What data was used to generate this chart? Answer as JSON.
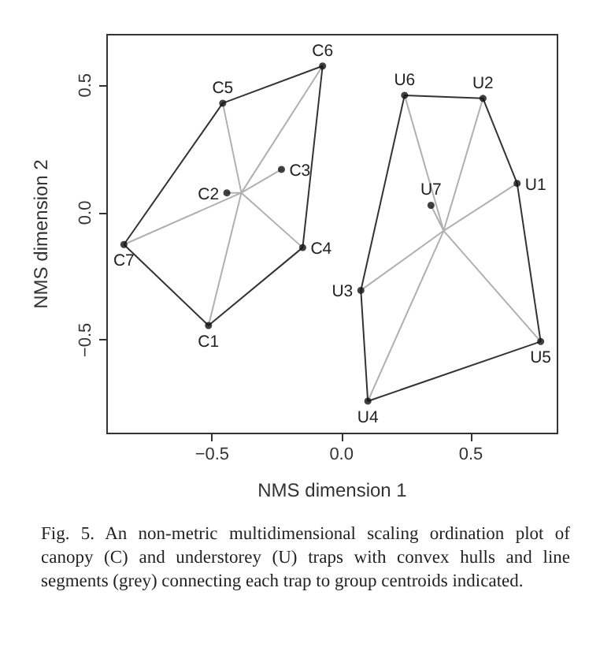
{
  "chart_data": {
    "type": "scatter",
    "xlabel": "NMS dimension 1",
    "ylabel": "NMS dimension 2",
    "xlim": [
      -0.906,
      0.835
    ],
    "ylim": [
      -0.867,
      0.699
    ],
    "xticks": [
      {
        "value": -0.5,
        "label": "−0.5"
      },
      {
        "value": 0,
        "label": "0.0"
      },
      {
        "value": 0.5,
        "label": "0.5"
      }
    ],
    "yticks": [
      {
        "value": -0.5,
        "label": "−0.5"
      },
      {
        "value": 0,
        "label": "0.0"
      },
      {
        "value": 0.5,
        "label": "0.5"
      }
    ],
    "grid": false,
    "marker": "circle",
    "series": [
      {
        "type": "line",
        "marker": "none",
        "color": "#b0b0b0",
        "x": [
          -0.387,
          -0.514,
          -0.387,
          -0.443,
          -0.387,
          -0.232,
          -0.387,
          -0.15,
          -0.387,
          -0.459,
          -0.387,
          -0.073,
          -0.387,
          -0.841
        ],
        "values": [
          0.078,
          -0.443,
          0.078,
          0.078,
          0.078,
          0.17,
          0.078,
          -0.137,
          0.078,
          0.43,
          0.078,
          0.576,
          0.078,
          -0.125
        ]
      },
      {
        "type": "line",
        "marker": "none",
        "color": "#b0b0b0",
        "x": [
          0.395,
          0.679,
          0.395,
          0.547,
          0.395,
          0.075,
          0.395,
          0.102,
          0.395,
          0.77,
          0.395,
          0.244,
          0.395,
          0.346
        ],
        "values": [
          -0.071,
          0.115,
          -0.071,
          0.449,
          -0.071,
          -0.305,
          -0.071,
          -0.74,
          -0.071,
          -0.506,
          -0.071,
          0.461,
          -0.071,
          0.029
        ]
      },
      {
        "type": "line",
        "marker": "none",
        "color": "#333333",
        "x": [
          -0.841,
          -0.459,
          -0.073
        ],
        "values": [
          -0.125,
          0.43,
          0.576
        ]
      },
      {
        "type": "line",
        "marker": "none",
        "color": "#333333",
        "x": [
          -0.841,
          -0.514,
          -0.15,
          -0.073
        ],
        "values": [
          -0.125,
          -0.443,
          -0.137,
          0.576
        ]
      },
      {
        "type": "line",
        "marker": "none",
        "color": "#333333",
        "x": [
          0.075,
          0.244,
          0.547,
          0.679,
          0.77
        ],
        "values": [
          -0.305,
          0.461,
          0.449,
          0.115,
          -0.506
        ]
      },
      {
        "type": "line",
        "marker": "none",
        "color": "#333333",
        "x": [
          0.075,
          0.102,
          0.77
        ],
        "values": [
          -0.305,
          -0.74,
          -0.506
        ]
      },
      {
        "color": "#111111",
        "x": [
          -0.514,
          -0.443,
          -0.232,
          -0.15,
          -0.459,
          -0.073,
          -0.841
        ],
        "values": [
          -0.443,
          0.078,
          0.17,
          -0.137,
          0.43,
          0.576,
          -0.125
        ]
      },
      {
        "color": "#111111",
        "x": [
          0.679,
          0.547,
          0.075,
          0.102,
          0.77,
          0.244,
          0.346
        ],
        "values": [
          0.115,
          0.449,
          -0.305,
          -0.74,
          -0.506,
          0.461,
          0.029
        ]
      }
    ],
    "annotations": [
      {
        "text": "C1",
        "x": -0.514,
        "y": -0.443
      },
      {
        "text": "C2",
        "x": -0.443,
        "y": 0.078
      },
      {
        "text": "C3",
        "x": -0.232,
        "y": 0.17
      },
      {
        "text": "C4",
        "x": -0.15,
        "y": -0.137
      },
      {
        "text": "C5",
        "x": -0.459,
        "y": 0.43
      },
      {
        "text": "C6",
        "x": -0.073,
        "y": 0.576
      },
      {
        "text": "C7",
        "x": -0.841,
        "y": -0.125
      },
      {
        "text": "U1",
        "x": 0.679,
        "y": 0.115
      },
      {
        "text": "U2",
        "x": 0.547,
        "y": 0.449
      },
      {
        "text": "U3",
        "x": 0.075,
        "y": -0.305
      },
      {
        "text": "U4",
        "x": 0.102,
        "y": -0.74
      },
      {
        "text": "U5",
        "x": 0.77,
        "y": -0.506
      },
      {
        "text": "U6",
        "x": 0.244,
        "y": 0.461
      },
      {
        "text": "U7",
        "x": 0.346,
        "y": 0.029
      },
      "Fig. 5. An non-metric multidimensional scaling ordination plot of canopy (C) and understorey (U) traps with convex hulls and line segments (grey) connecting each trap to group centroids indicated."
    ]
  }
}
